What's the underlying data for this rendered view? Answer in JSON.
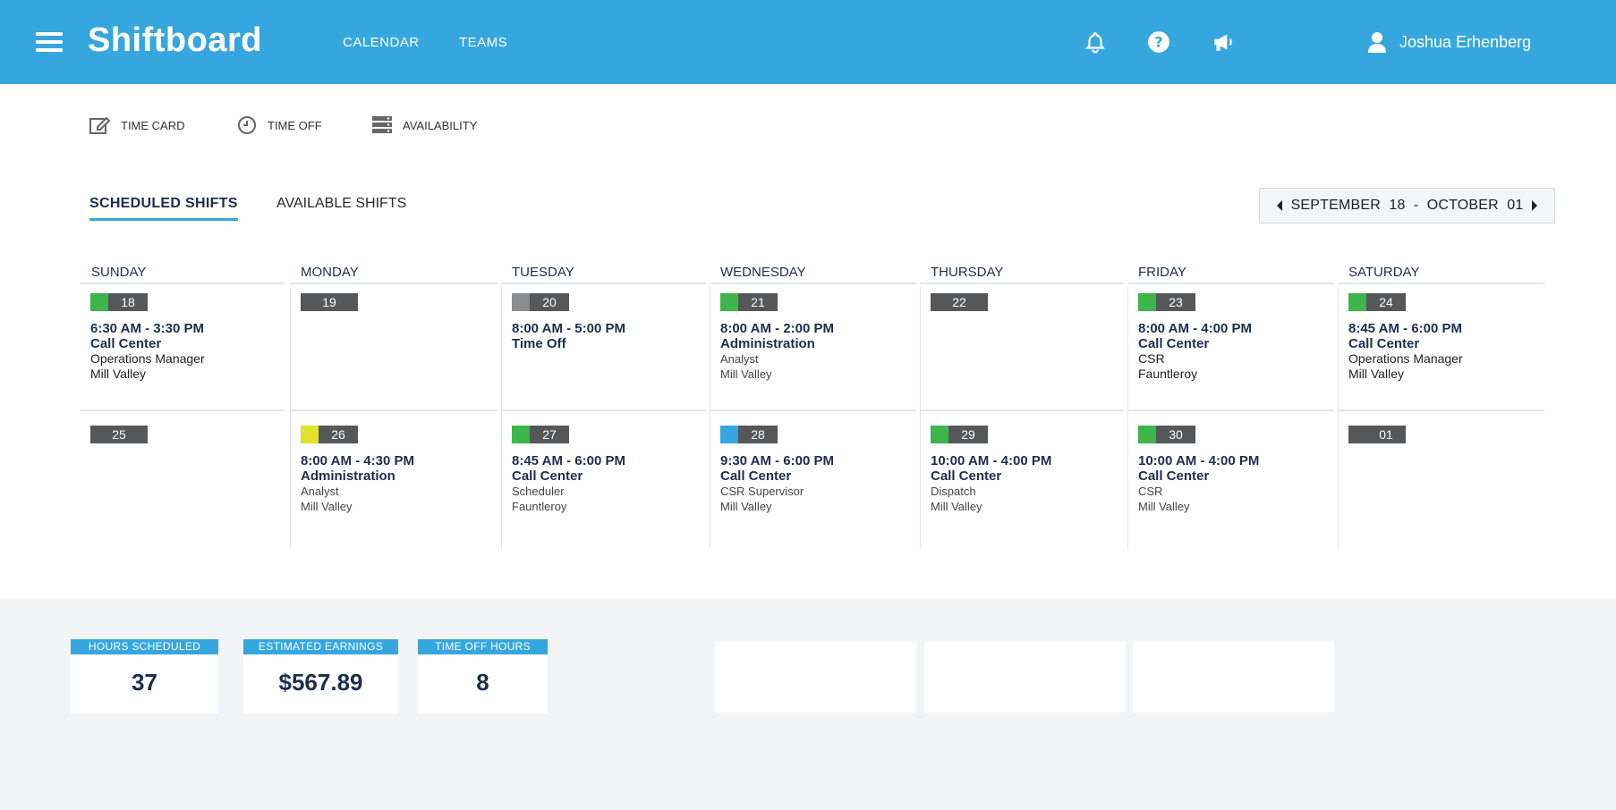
{
  "header": {
    "brand": "Shiftboard",
    "nav": [
      "CALENDAR",
      "TEAMS"
    ],
    "icons": [
      "bell-icon",
      "help-icon",
      "megaphone-icon"
    ],
    "user_name": "Joshua Erhenberg",
    "color": "#36a7de"
  },
  "actions": {
    "time_card": "TIME CARD",
    "time_off": "TIME OFF",
    "availability": "AVAILABILITY"
  },
  "tabs": {
    "scheduled": "SCHEDULED SHIFTS",
    "available": "AVAILABLE SHIFTS"
  },
  "date_range": {
    "start_month": "SEPTEMBER",
    "start_day": "18",
    "separator": "-",
    "end_month": "OCTOBER",
    "end_day": "01"
  },
  "days": [
    "SUNDAY",
    "MONDAY",
    "TUESDAY",
    "WEDNESDAY",
    "THURSDAY",
    "FRIDAY",
    "SATURDAY"
  ],
  "weeks": [
    [
      {
        "date": "18",
        "color": "#3cb54a",
        "shift": {
          "time": "6:30 AM - 3:30 PM",
          "location": "Call Center",
          "role": "Operations Manager",
          "site": "Mill Valley"
        }
      },
      {
        "date": "19",
        "color": null,
        "shift": null
      },
      {
        "date": "20",
        "color": "#8a8c8e",
        "shift": {
          "time": "8:00 AM - 5:00 PM",
          "location": "Time Off",
          "role": "",
          "site": ""
        }
      },
      {
        "date": "21",
        "color": "#3cb54a",
        "shift": {
          "time": "8:00 AM - 2:00 PM",
          "location": "Administration",
          "role": "Analyst",
          "site": "Mill Valley"
        }
      },
      {
        "date": "22",
        "color": null,
        "shift": null
      },
      {
        "date": "23",
        "color": "#3cb54a",
        "shift": {
          "time": "8:00 AM - 4:00 PM",
          "location": "Call Center",
          "role": "CSR",
          "site": "Fauntleroy"
        }
      },
      {
        "date": "24",
        "color": "#3cb54a",
        "shift": {
          "time": "8:45 AM - 6:00 PM",
          "location": "Call Center",
          "role": "Operations Manager",
          "site": "Mill Valley"
        }
      }
    ],
    [
      {
        "date": "25",
        "color": null,
        "shift": null
      },
      {
        "date": "26",
        "color": "#e1e22a",
        "shift": {
          "time": "8:00 AM - 4:30 PM",
          "location": "Administration",
          "role": "Analyst",
          "site": "Mill Valley"
        }
      },
      {
        "date": "27",
        "color": "#3cb54a",
        "shift": {
          "time": "8:45 AM - 6:00 PM",
          "location": "Call Center",
          "role": "Scheduler",
          "site": "Fauntleroy"
        }
      },
      {
        "date": "28",
        "color": "#36a7de",
        "shift": {
          "time": "9:30 AM - 6:00 PM",
          "location": "Call Center",
          "role": "CSR Supervisor",
          "site": "Mill Valley"
        }
      },
      {
        "date": "29",
        "color": "#3cb54a",
        "shift": {
          "time": "10:00 AM - 4:00 PM",
          "location": "Call Center",
          "role": "Dispatch",
          "site": "Mill Valley"
        }
      },
      {
        "date": "30",
        "color": "#3cb54a",
        "shift": {
          "time": "10:00 AM - 4:00 PM",
          "location": "Call Center",
          "role": "CSR",
          "site": "Mill Valley"
        }
      },
      {
        "date": "01",
        "color": "#555759",
        "shift": null
      }
    ]
  ],
  "stats": [
    {
      "label": "HOURS SCHEDULED",
      "value": "37"
    },
    {
      "label": "ESTIMATED EARNINGS",
      "value": "$567.89"
    },
    {
      "label": "TIME OFF HOURS",
      "value": "8"
    }
  ]
}
